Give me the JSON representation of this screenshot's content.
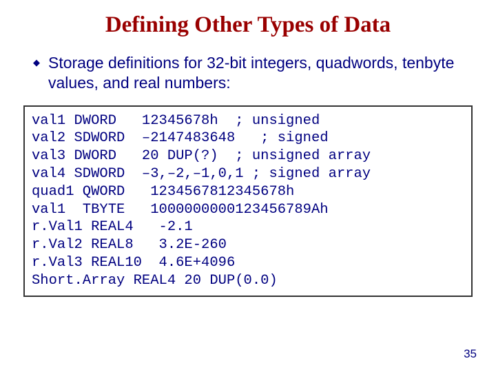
{
  "title": {
    "text": "Defining Other Types of Data",
    "color": "#990000",
    "fontsize": 33
  },
  "bullet": {
    "icon": "◆",
    "text": "Storage definitions for 32-bit integers, quadwords, tenbyte values, and real numbers:",
    "color": "#000080",
    "fontsize": 23
  },
  "code": {
    "lines": [
      "val1 DWORD   12345678h  ; unsigned",
      "val2 SDWORD  –2147483648   ; signed",
      "val3 DWORD   20 DUP(?)  ; unsigned array",
      "val4 SDWORD  –3,–2,–1,0,1 ; signed array",
      "quad1 QWORD   1234567812345678h",
      "val1  TBYTE   1000000000123456789Ah",
      "r.Val1 REAL4   -2.1",
      "r.Val2 REAL8   3.2E-260",
      "r.Val3 REAL10  4.6E+4096",
      "Short.Array REAL4 20 DUP(0.0)"
    ],
    "color": "#000080",
    "fontsize": 20.5,
    "border_color": "#333333"
  },
  "page_number": "35",
  "background_color": "#ffffff"
}
